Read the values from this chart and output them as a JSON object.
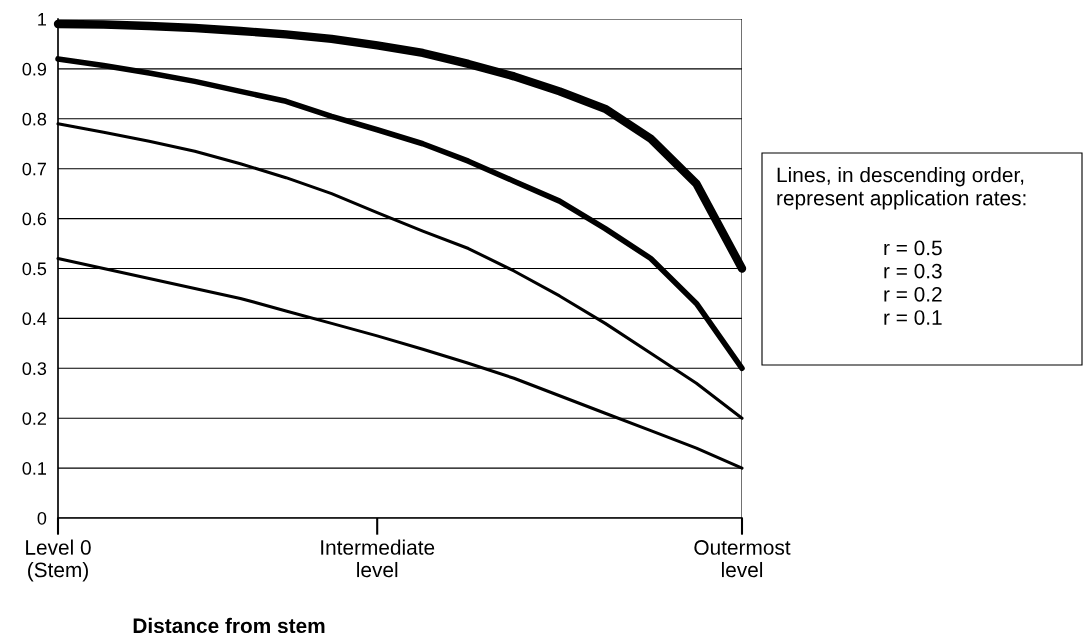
{
  "chart_data": {
    "type": "line",
    "xlabel": "Distance from stem",
    "categories": [
      "Level 0\n(Stem)",
      null,
      null,
      null,
      null,
      null,
      null,
      "Intermediate\nlevel",
      null,
      null,
      null,
      null,
      null,
      null,
      null,
      "Outermost\nlevel"
    ],
    "series": [
      {
        "color": "#000000",
        "values": [
          0.99,
          0.989,
          0.986,
          0.982,
          0.976,
          0.969,
          0.96,
          0.947,
          0.932,
          0.91,
          0.885,
          0.855,
          0.82,
          0.76,
          0.67,
          0.5
        ]
      },
      {
        "color": "#000000",
        "values": [
          0.92,
          0.907,
          0.892,
          0.875,
          0.855,
          0.835,
          0.805,
          0.778,
          0.75,
          0.715,
          0.675,
          0.635,
          0.58,
          0.52,
          0.43,
          0.3
        ]
      },
      {
        "color": "#000000",
        "values": [
          0.79,
          0.773,
          0.755,
          0.735,
          0.71,
          0.682,
          0.65,
          0.612,
          0.575,
          0.54,
          0.495,
          0.445,
          0.39,
          0.33,
          0.27,
          0.2
        ]
      },
      {
        "color": "#000000",
        "values": [
          0.52,
          0.5,
          0.48,
          0.46,
          0.44,
          0.415,
          0.39,
          0.365,
          0.338,
          0.31,
          0.28,
          0.245,
          0.21,
          0.175,
          0.14,
          0.1
        ]
      }
    ],
    "ylim": [
      0,
      1
    ],
    "yticks": [
      0,
      0.1,
      0.2,
      0.3,
      0.4,
      0.5,
      0.6,
      0.7,
      0.8,
      0.9,
      1
    ],
    "grid": "y",
    "legend": false,
    "marker": "none",
    "line_style": "solid",
    "annotations": [
      "Lines, in descending order,\nrepresent application rates:",
      "r = 0.5\nr = 0.3\nr = 0.2\nr = 0.1"
    ]
  }
}
